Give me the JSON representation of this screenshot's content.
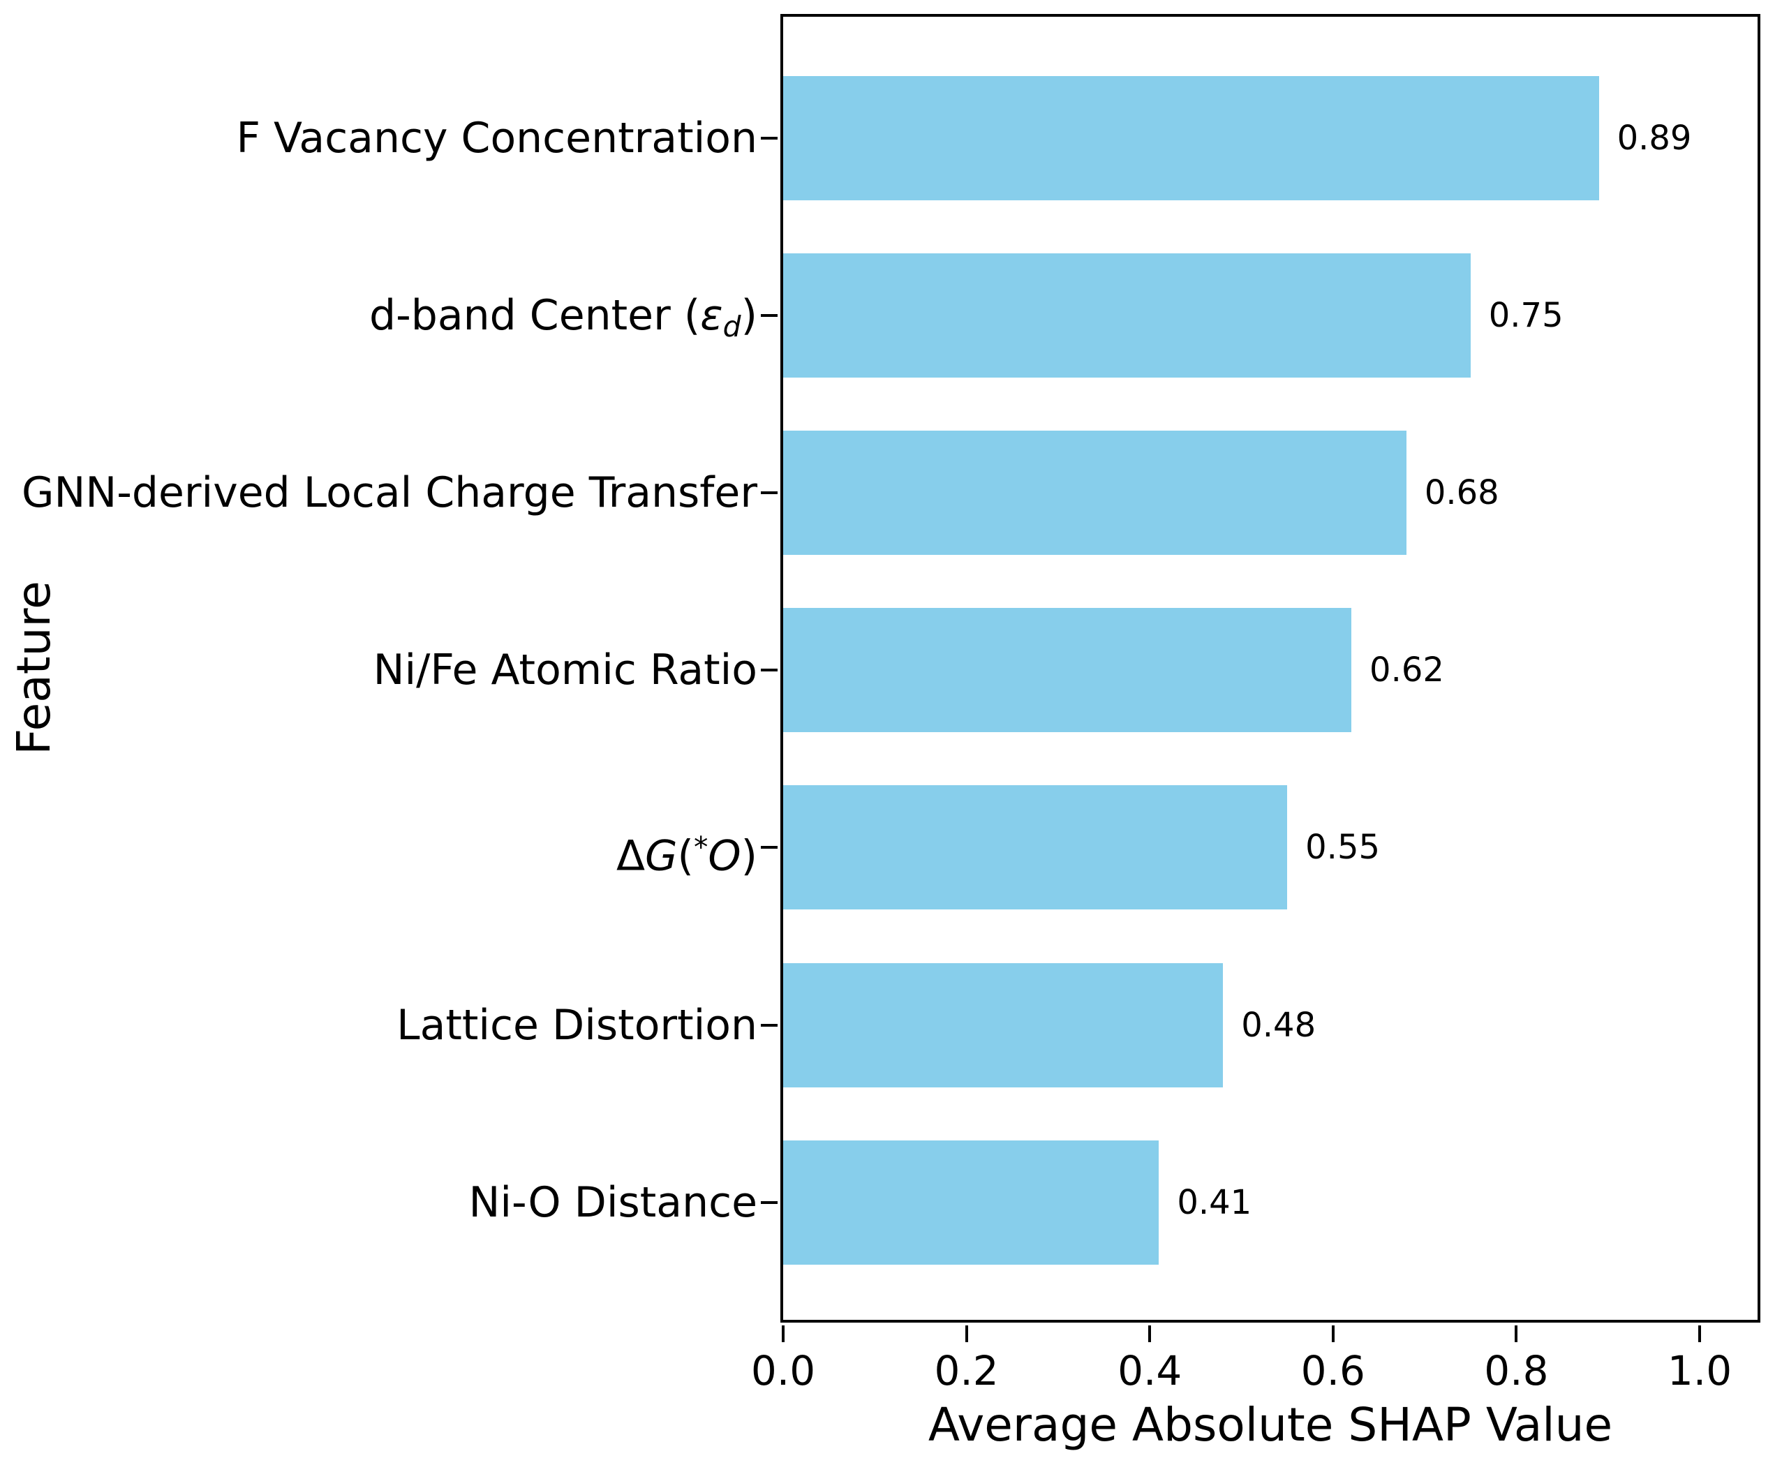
{
  "chart_data": {
    "type": "bar",
    "orientation": "horizontal",
    "title": "",
    "xlabel": "Average Absolute SHAP Value",
    "ylabel": "Feature",
    "bar_color": "#87CEEB",
    "text_color": "#000000",
    "grid": false,
    "xlim": [
      0.0,
      1.068
    ],
    "xticks": [
      0.0,
      0.2,
      0.4,
      0.6,
      0.8,
      1.0
    ],
    "xtick_labels": [
      "0.0",
      "0.2",
      "0.4",
      "0.6",
      "0.8",
      "1.0"
    ],
    "categories": [
      "F Vacancy Concentration",
      "d-band Center (εd)",
      "GNN-derived Local Charge Transfer",
      "Ni/Fe Atomic Ratio",
      "ΔG(*O)",
      "Lattice Distortion",
      "Ni-O Distance"
    ],
    "categories_rich": [
      [
        {
          "t": "F Vacancy Concentration"
        }
      ],
      [
        {
          "t": "d-band Center ("
        },
        {
          "t": "ε",
          "i": true
        },
        {
          "t": "d",
          "i": true,
          "sub": true
        },
        {
          "t": ")"
        }
      ],
      [
        {
          "t": "GNN-derived Local Charge Transfer"
        }
      ],
      [
        {
          "t": "Ni/Fe Atomic Ratio"
        }
      ],
      [
        {
          "t": "Δ"
        },
        {
          "t": "G",
          "i": true
        },
        {
          "t": "("
        },
        {
          "t": "*",
          "sup": true
        },
        {
          "t": "O",
          "i": true
        },
        {
          "t": ")"
        }
      ],
      [
        {
          "t": "Lattice Distortion"
        }
      ],
      [
        {
          "t": "Ni-O Distance"
        }
      ]
    ],
    "values": [
      0.89,
      0.75,
      0.68,
      0.62,
      0.55,
      0.48,
      0.41
    ],
    "value_labels": [
      "0.89",
      "0.75",
      "0.68",
      "0.62",
      "0.55",
      "0.48",
      "0.41"
    ]
  }
}
